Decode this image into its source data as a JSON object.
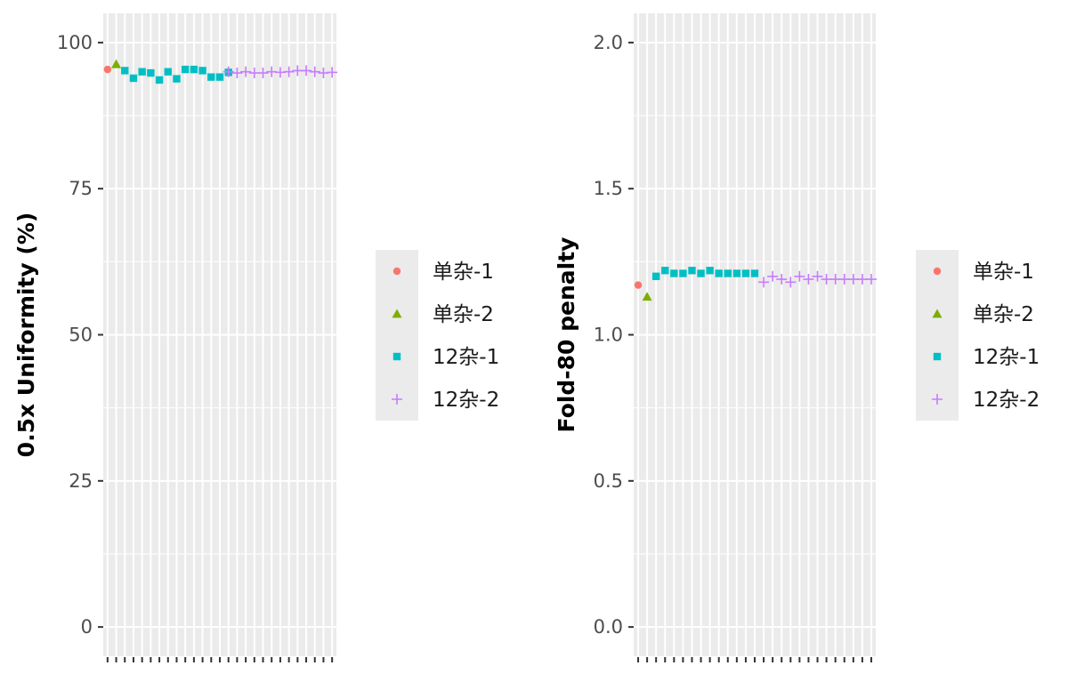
{
  "chart_data": [
    {
      "type": "scatter",
      "title": "",
      "xlabel": "",
      "ylabel": "0.5x Uniformity (%)",
      "ylim": [
        -5,
        105
      ],
      "yticks": [
        0,
        25,
        50,
        75,
        100
      ],
      "ytick_labels": [
        "0",
        "25",
        "50",
        "75",
        "100"
      ],
      "grid": true,
      "x_tick_labels_shown": false,
      "legend_position": "right",
      "series": [
        {
          "name": "单杂-1",
          "color": "#F8766D",
          "shape": "circle",
          "x": [
            1
          ],
          "values": [
            95.4
          ]
        },
        {
          "name": "单杂-2",
          "color": "#7CAE00",
          "shape": "triangle",
          "x": [
            2
          ],
          "values": [
            96.3
          ]
        },
        {
          "name": "12杂-1",
          "color": "#00BFC4",
          "shape": "square",
          "x": [
            3,
            4,
            5,
            6,
            7,
            8,
            9,
            10,
            11,
            12,
            13,
            14,
            15
          ],
          "values": [
            95.2,
            93.9,
            95.0,
            94.8,
            93.6,
            95.0,
            93.8,
            95.4,
            95.4,
            95.2,
            94.1,
            94.1,
            94.9
          ]
        },
        {
          "name": "12杂-2",
          "color": "#C77CFF",
          "shape": "plus",
          "x": [
            15,
            16,
            17,
            18,
            19,
            20,
            21,
            22,
            23,
            24,
            25,
            26,
            27
          ],
          "values": [
            95.0,
            94.8,
            95.0,
            94.8,
            94.8,
            95.0,
            94.9,
            95.0,
            95.2,
            95.2,
            95.0,
            94.8,
            94.9
          ]
        }
      ]
    },
    {
      "type": "scatter",
      "title": "",
      "xlabel": "",
      "ylabel": "Fold-80 penalty",
      "ylim": [
        -0.1,
        2.1
      ],
      "yticks": [
        0,
        0.5,
        1,
        1.5,
        2
      ],
      "ytick_labels": [
        "0.0",
        "0.5",
        "1.0",
        "1.5",
        "2.0"
      ],
      "grid": true,
      "x_tick_labels_shown": false,
      "legend_position": "right",
      "series": [
        {
          "name": "单杂-1",
          "color": "#F8766D",
          "shape": "circle",
          "x": [
            1
          ],
          "values": [
            1.17
          ]
        },
        {
          "name": "单杂-2",
          "color": "#7CAE00",
          "shape": "triangle",
          "x": [
            2
          ],
          "values": [
            1.13
          ]
        },
        {
          "name": "12杂-1",
          "color": "#00BFC4",
          "shape": "square",
          "x": [
            3,
            4,
            5,
            6,
            7,
            8,
            9,
            10,
            11,
            12,
            13,
            14
          ],
          "values": [
            1.2,
            1.22,
            1.21,
            1.21,
            1.22,
            1.21,
            1.22,
            1.21,
            1.21,
            1.21,
            1.21,
            1.21
          ]
        },
        {
          "name": "12杂-2",
          "color": "#C77CFF",
          "shape": "plus",
          "x": [
            15,
            16,
            17,
            18,
            19,
            20,
            21,
            22,
            23,
            24,
            25,
            26,
            27
          ],
          "values": [
            1.18,
            1.2,
            1.19,
            1.18,
            1.2,
            1.19,
            1.2,
            1.19,
            1.19,
            1.19,
            1.19,
            1.19,
            1.19
          ]
        }
      ]
    }
  ]
}
